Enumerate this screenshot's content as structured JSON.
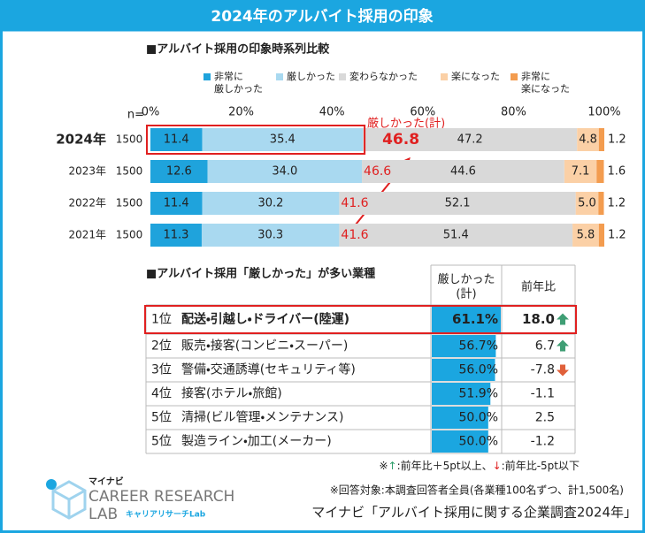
{
  "header": {
    "title": "2024年のアルバイト採用の印象"
  },
  "chart_data": {
    "type": "bar",
    "title": "■アルバイト採用の印象時系列比較",
    "n_label": "n=",
    "categories": [
      "2024年",
      "2023年",
      "2022年",
      "2021年"
    ],
    "n": [
      1500,
      1500,
      1500,
      1500
    ],
    "series": [
      {
        "name": "非常に\n厳しかった",
        "color": "#1fa3dc",
        "values": [
          11.4,
          12.6,
          11.4,
          11.3
        ],
        "value_labels": [
          "11.4",
          "12.6",
          "11.4",
          "11.3"
        ]
      },
      {
        "name": "厳しかった",
        "color": "#a9d9f0",
        "values": [
          35.4,
          34.0,
          30.2,
          30.3
        ],
        "value_labels": [
          "35.4",
          "34.0",
          "30.2",
          "30.3"
        ]
      },
      {
        "name": "変わらなかった",
        "color": "#d9d9d9",
        "values": [
          47.2,
          44.6,
          52.1,
          51.4
        ],
        "value_labels": [
          "47.2",
          "44.6",
          "52.1",
          "51.4"
        ]
      },
      {
        "name": "楽になった",
        "color": "#fbd0a6",
        "values": [
          4.8,
          7.1,
          5.0,
          5.8
        ],
        "value_labels": [
          "4.8",
          "7.1",
          "5.0",
          "5.8"
        ]
      },
      {
        "name": "非常に\n楽になった",
        "color": "#f39c4f",
        "values": [
          1.2,
          1.6,
          1.2,
          1.2
        ],
        "value_labels": [
          "1.2",
          "1.6",
          "1.2",
          "1.2"
        ]
      }
    ],
    "xlim": [
      0,
      100
    ],
    "xticks": [
      {
        "value": 0,
        "label": "0%"
      },
      {
        "value": 20,
        "label": "20%"
      },
      {
        "value": 40,
        "label": "40%"
      },
      {
        "value": 60,
        "label": "60%"
      },
      {
        "value": 80,
        "label": "80%"
      },
      {
        "value": 100,
        "label": "100%"
      }
    ],
    "total_annotation": "厳しかった(計)",
    "totals": [
      46.8,
      46.6,
      41.6,
      41.6
    ]
  },
  "table": {
    "title": "■アルバイト採用「厳しかった」が多い業種",
    "headers": [
      "厳しかった\n(計)",
      "前年比"
    ],
    "rows": [
      {
        "rank": "1位",
        "name": "配送・引越し・ドライバー(陸運)",
        "value": 61.1,
        "value_label": "61.1%",
        "change": "18.0",
        "trend": "up"
      },
      {
        "rank": "2位",
        "name": "販売・接客(コンビニ・スーパー)",
        "value": 56.7,
        "value_label": "56.7%",
        "change": "6.7",
        "trend": "up"
      },
      {
        "rank": "3位",
        "name": "警備・交通誘導(セキュリティ等)",
        "value": 56.0,
        "value_label": "56.0%",
        "change": "-7.8",
        "trend": "down"
      },
      {
        "rank": "4位",
        "name": "接客(ホテル・旅館)",
        "value": 51.9,
        "value_label": "51.9%",
        "change": "-1.1",
        "trend": null
      },
      {
        "rank": "5位",
        "name": "清掃(ビル管理・メンテナンス)",
        "value": 50.0,
        "value_label": "50.0%",
        "change": "2.5",
        "trend": null
      },
      {
        "rank": "5位",
        "name": "製造ライン・加工(メーカー)",
        "value": 50.0,
        "value_label": "50.0%",
        "change": "-1.2",
        "trend": null
      }
    ],
    "legend_note": {
      "prefix": "※",
      "up": "↑",
      "up_text": ":前年比＋5pt以上、",
      "down": "↓",
      "down_text": ":前年比-5pt以下"
    }
  },
  "footer": {
    "respondents": "※回答対象:本調査回答者全員(各業種100名ずつ、計1,500名)",
    "source": "マイナビ「アルバイト採用に関する企業調査2024年」"
  },
  "logo": {
    "brand": "マイナビ",
    "line1": "CAREER RESEARCH",
    "line2": "LAB",
    "sub": "キャリアリサーチLab"
  }
}
